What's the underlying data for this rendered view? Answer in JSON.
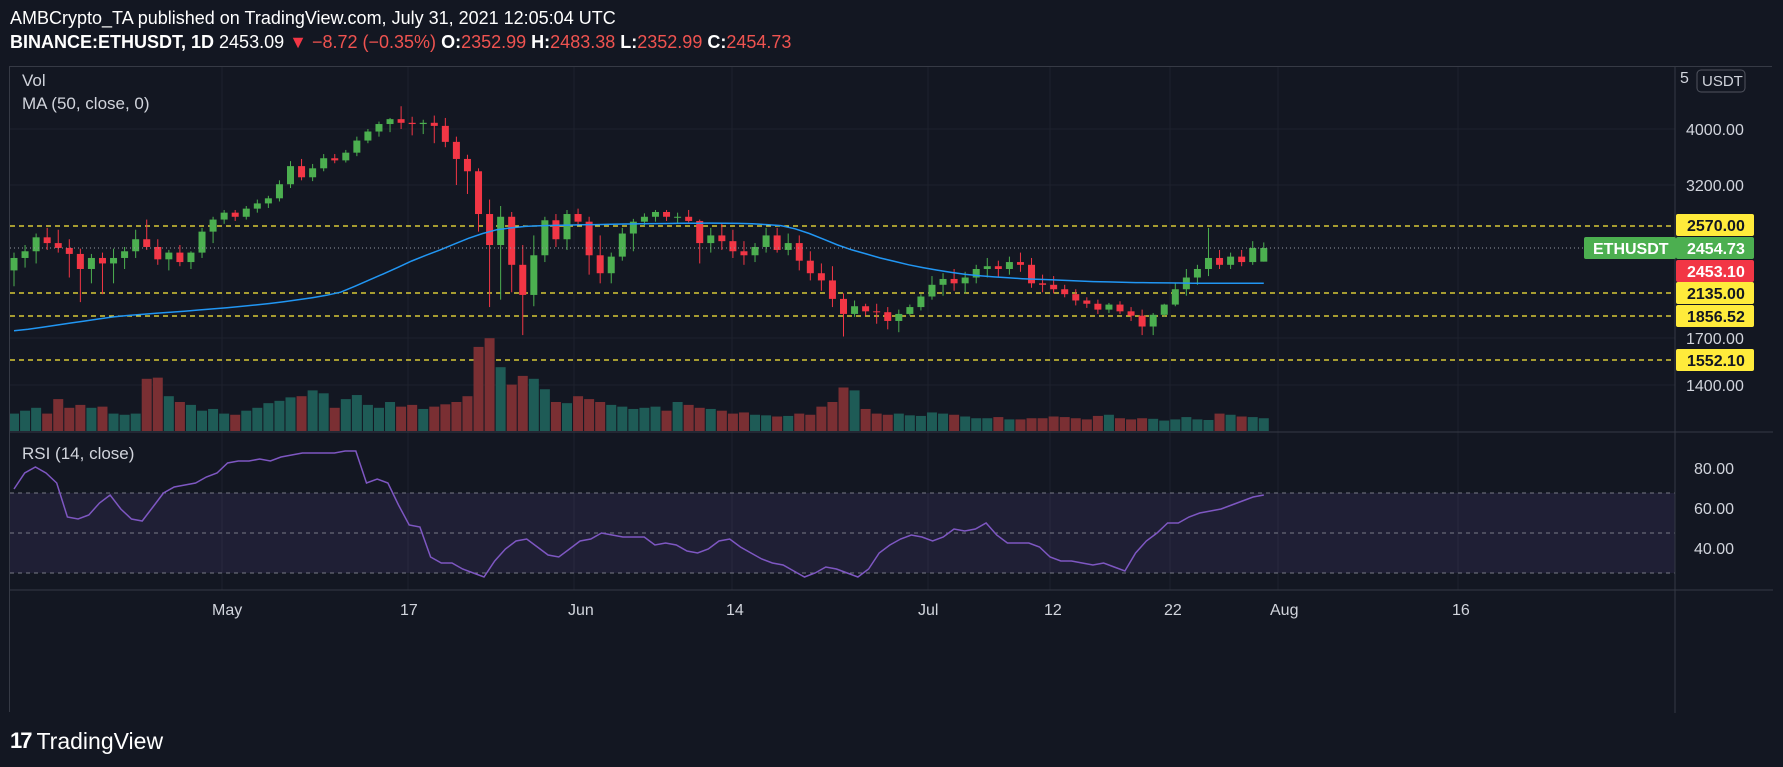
{
  "header": {
    "author": "AMBCrypto_TA",
    "published_text": "published on TradingView.com, July 31, 2021 12:05:04 UTC",
    "symbol": "BINANCE:ETHUSDT, 1D",
    "last": "2453.09",
    "change": "−8.72 (−0.35%)",
    "o_label": "O:",
    "o_val": "2352.99",
    "h_label": "H:",
    "h_val": "2483.38",
    "l_label": "L:",
    "l_val": "2352.99",
    "c_label": "C:",
    "c_val": "2454.73"
  },
  "indicators": {
    "vol": "Vol",
    "ma": "MA (50, close, 0)",
    "rsi": "RSI (14, close)"
  },
  "currency_button": "USDT",
  "price_axis": {
    "ticks": [
      "4000.00",
      "3200.00",
      "1700.00",
      "1400.00"
    ],
    "top_partial": "5"
  },
  "rsi_axis": {
    "ticks": [
      "80.00",
      "60.00",
      "40.00"
    ]
  },
  "time_axis": {
    "ticks": [
      "May",
      "17",
      "Jun",
      "14",
      "Jul",
      "12",
      "22",
      "Aug",
      "16"
    ]
  },
  "price_tags": {
    "symbol_label": "ETHUSDT",
    "symbol_value": "2454.73",
    "last_value": "2453.10",
    "levels": [
      "2570.00",
      "2135.00",
      "1856.52",
      "1552.10"
    ]
  },
  "colors": {
    "background": "#131722",
    "up": "#26a69a",
    "candle_up": "#4caf50",
    "candle_down": "#f23645",
    "vol_up": "#1e5b56",
    "vol_down": "#7a2f33",
    "ma": "#2196f3",
    "rsi": "#7e57c2",
    "level": "#ffeb3b"
  },
  "footer": {
    "brand": "TradingView"
  },
  "chart_data": {
    "type": "candlestick",
    "symbol": "ETHUSDT",
    "timeframe": "1D",
    "price_levels": [
      2570.0,
      2135.0,
      1856.52,
      1552.1
    ],
    "last_price": 2454.73,
    "candles": [
      {
        "o": 2290,
        "h": 2420,
        "l": 2180,
        "c": 2380
      },
      {
        "o": 2380,
        "h": 2470,
        "l": 2310,
        "c": 2430
      },
      {
        "o": 2430,
        "h": 2530,
        "l": 2340,
        "c": 2510
      },
      {
        "o": 2510,
        "h": 2560,
        "l": 2440,
        "c": 2480
      },
      {
        "o": 2480,
        "h": 2550,
        "l": 2420,
        "c": 2455
      },
      {
        "o": 2455,
        "h": 2500,
        "l": 2240,
        "c": 2410
      },
      {
        "o": 2410,
        "h": 2450,
        "l": 2020,
        "c": 2300
      },
      {
        "o": 2300,
        "h": 2410,
        "l": 2200,
        "c": 2380
      },
      {
        "o": 2380,
        "h": 2420,
        "l": 2120,
        "c": 2340
      },
      {
        "o": 2340,
        "h": 2450,
        "l": 2200,
        "c": 2380
      },
      {
        "o": 2380,
        "h": 2460,
        "l": 2300,
        "c": 2430
      },
      {
        "o": 2430,
        "h": 2550,
        "l": 2380,
        "c": 2500
      },
      {
        "o": 2500,
        "h": 2660,
        "l": 2440,
        "c": 2460
      },
      {
        "o": 2460,
        "h": 2500,
        "l": 2330,
        "c": 2370
      },
      {
        "o": 2370,
        "h": 2440,
        "l": 2290,
        "c": 2420
      },
      {
        "o": 2420,
        "h": 2470,
        "l": 2320,
        "c": 2350
      },
      {
        "o": 2350,
        "h": 2430,
        "l": 2300,
        "c": 2420
      },
      {
        "o": 2420,
        "h": 2560,
        "l": 2380,
        "c": 2540
      },
      {
        "o": 2540,
        "h": 2700,
        "l": 2480,
        "c": 2660
      },
      {
        "o": 2660,
        "h": 2800,
        "l": 2600,
        "c": 2760
      },
      {
        "o": 2760,
        "h": 2800,
        "l": 2640,
        "c": 2700
      },
      {
        "o": 2700,
        "h": 2860,
        "l": 2660,
        "c": 2820
      },
      {
        "o": 2820,
        "h": 2960,
        "l": 2760,
        "c": 2900
      },
      {
        "o": 2900,
        "h": 3020,
        "l": 2830,
        "c": 2980
      },
      {
        "o": 2980,
        "h": 3260,
        "l": 2930,
        "c": 3210
      },
      {
        "o": 3210,
        "h": 3520,
        "l": 3150,
        "c": 3450
      },
      {
        "o": 3450,
        "h": 3550,
        "l": 3260,
        "c": 3300
      },
      {
        "o": 3300,
        "h": 3480,
        "l": 3250,
        "c": 3420
      },
      {
        "o": 3420,
        "h": 3620,
        "l": 3380,
        "c": 3560
      },
      {
        "o": 3560,
        "h": 3620,
        "l": 3490,
        "c": 3530
      },
      {
        "o": 3530,
        "h": 3680,
        "l": 3500,
        "c": 3640
      },
      {
        "o": 3640,
        "h": 3880,
        "l": 3590,
        "c": 3820
      },
      {
        "o": 3820,
        "h": 4000,
        "l": 3780,
        "c": 3960
      },
      {
        "o": 3960,
        "h": 4120,
        "l": 3880,
        "c": 4080
      },
      {
        "o": 4080,
        "h": 4180,
        "l": 3950,
        "c": 4160
      },
      {
        "o": 4160,
        "h": 4380,
        "l": 4000,
        "c": 4100
      },
      {
        "o": 4100,
        "h": 4200,
        "l": 3900,
        "c": 4080
      },
      {
        "o": 4080,
        "h": 4150,
        "l": 3920,
        "c": 4100
      },
      {
        "o": 4100,
        "h": 4220,
        "l": 3780,
        "c": 4050
      },
      {
        "o": 4050,
        "h": 4180,
        "l": 3720,
        "c": 3800
      },
      {
        "o": 3800,
        "h": 3880,
        "l": 3200,
        "c": 3550
      },
      {
        "o": 3550,
        "h": 3610,
        "l": 3050,
        "c": 3380
      },
      {
        "o": 3380,
        "h": 3420,
        "l": 2540,
        "c": 2740
      },
      {
        "o": 2740,
        "h": 2960,
        "l": 1960,
        "c": 2470
      },
      {
        "o": 2470,
        "h": 2860,
        "l": 2050,
        "c": 2700
      },
      {
        "o": 2700,
        "h": 2770,
        "l": 2140,
        "c": 2330
      },
      {
        "o": 2330,
        "h": 2470,
        "l": 1720,
        "c": 2110
      },
      {
        "o": 2110,
        "h": 2520,
        "l": 1970,
        "c": 2400
      },
      {
        "o": 2400,
        "h": 2700,
        "l": 2350,
        "c": 2650
      },
      {
        "o": 2650,
        "h": 2740,
        "l": 2460,
        "c": 2500
      },
      {
        "o": 2500,
        "h": 2800,
        "l": 2440,
        "c": 2740
      },
      {
        "o": 2740,
        "h": 2820,
        "l": 2590,
        "c": 2630
      },
      {
        "o": 2630,
        "h": 2700,
        "l": 2260,
        "c": 2400
      },
      {
        "o": 2400,
        "h": 2520,
        "l": 2200,
        "c": 2270
      },
      {
        "o": 2270,
        "h": 2420,
        "l": 2200,
        "c": 2390
      },
      {
        "o": 2390,
        "h": 2560,
        "l": 2360,
        "c": 2530
      },
      {
        "o": 2530,
        "h": 2670,
        "l": 2430,
        "c": 2630
      },
      {
        "o": 2630,
        "h": 2750,
        "l": 2570,
        "c": 2700
      },
      {
        "o": 2700,
        "h": 2800,
        "l": 2630,
        "c": 2770
      },
      {
        "o": 2770,
        "h": 2800,
        "l": 2640,
        "c": 2700
      },
      {
        "o": 2700,
        "h": 2760,
        "l": 2600,
        "c": 2700
      },
      {
        "o": 2700,
        "h": 2800,
        "l": 2620,
        "c": 2640
      },
      {
        "o": 2640,
        "h": 2660,
        "l": 2340,
        "c": 2480
      },
      {
        "o": 2480,
        "h": 2560,
        "l": 2420,
        "c": 2520
      },
      {
        "o": 2520,
        "h": 2600,
        "l": 2440,
        "c": 2490
      },
      {
        "o": 2490,
        "h": 2550,
        "l": 2380,
        "c": 2430
      },
      {
        "o": 2430,
        "h": 2490,
        "l": 2330,
        "c": 2400
      },
      {
        "o": 2400,
        "h": 2480,
        "l": 2350,
        "c": 2460
      },
      {
        "o": 2460,
        "h": 2560,
        "l": 2420,
        "c": 2520
      },
      {
        "o": 2520,
        "h": 2560,
        "l": 2420,
        "c": 2440
      },
      {
        "o": 2440,
        "h": 2530,
        "l": 2400,
        "c": 2480
      },
      {
        "o": 2480,
        "h": 2520,
        "l": 2290,
        "c": 2360
      },
      {
        "o": 2360,
        "h": 2430,
        "l": 2220,
        "c": 2270
      },
      {
        "o": 2270,
        "h": 2340,
        "l": 2150,
        "c": 2220
      },
      {
        "o": 2220,
        "h": 2320,
        "l": 1960,
        "c": 2060
      },
      {
        "o": 2060,
        "h": 2130,
        "l": 1710,
        "c": 1880
      },
      {
        "o": 1880,
        "h": 2040,
        "l": 1850,
        "c": 1970
      },
      {
        "o": 1970,
        "h": 2000,
        "l": 1860,
        "c": 1910
      },
      {
        "o": 1910,
        "h": 2000,
        "l": 1800,
        "c": 1900
      },
      {
        "o": 1900,
        "h": 1960,
        "l": 1760,
        "c": 1820
      },
      {
        "o": 1820,
        "h": 1930,
        "l": 1740,
        "c": 1880
      },
      {
        "o": 1880,
        "h": 1990,
        "l": 1860,
        "c": 1960
      },
      {
        "o": 1960,
        "h": 2120,
        "l": 1920,
        "c": 2090
      },
      {
        "o": 2090,
        "h": 2250,
        "l": 2050,
        "c": 2190
      },
      {
        "o": 2190,
        "h": 2270,
        "l": 2100,
        "c": 2230
      },
      {
        "o": 2230,
        "h": 2300,
        "l": 2150,
        "c": 2200
      },
      {
        "o": 2200,
        "h": 2280,
        "l": 2130,
        "c": 2240
      },
      {
        "o": 2240,
        "h": 2330,
        "l": 2200,
        "c": 2300
      },
      {
        "o": 2300,
        "h": 2380,
        "l": 2240,
        "c": 2320
      },
      {
        "o": 2320,
        "h": 2360,
        "l": 2240,
        "c": 2300
      },
      {
        "o": 2300,
        "h": 2390,
        "l": 2260,
        "c": 2350
      },
      {
        "o": 2350,
        "h": 2420,
        "l": 2280,
        "c": 2330
      },
      {
        "o": 2330,
        "h": 2380,
        "l": 2170,
        "c": 2200
      },
      {
        "o": 2200,
        "h": 2260,
        "l": 2140,
        "c": 2190
      },
      {
        "o": 2190,
        "h": 2250,
        "l": 2130,
        "c": 2160
      },
      {
        "o": 2160,
        "h": 2190,
        "l": 2080,
        "c": 2120
      },
      {
        "o": 2120,
        "h": 2160,
        "l": 1980,
        "c": 2040
      },
      {
        "o": 2040,
        "h": 2080,
        "l": 1950,
        "c": 2000
      },
      {
        "o": 2000,
        "h": 2050,
        "l": 1880,
        "c": 1930
      },
      {
        "o": 1930,
        "h": 2010,
        "l": 1890,
        "c": 1990
      },
      {
        "o": 1990,
        "h": 2030,
        "l": 1880,
        "c": 1910
      },
      {
        "o": 1910,
        "h": 1960,
        "l": 1820,
        "c": 1860
      },
      {
        "o": 1860,
        "h": 1930,
        "l": 1720,
        "c": 1780
      },
      {
        "o": 1780,
        "h": 1890,
        "l": 1720,
        "c": 1870
      },
      {
        "o": 1870,
        "h": 2000,
        "l": 1850,
        "c": 1990
      },
      {
        "o": 1990,
        "h": 2200,
        "l": 1970,
        "c": 2160
      },
      {
        "o": 2160,
        "h": 2300,
        "l": 2100,
        "c": 2240
      },
      {
        "o": 2240,
        "h": 2330,
        "l": 2190,
        "c": 2300
      },
      {
        "o": 2300,
        "h": 2560,
        "l": 2250,
        "c": 2380
      },
      {
        "o": 2380,
        "h": 2440,
        "l": 2300,
        "c": 2330
      },
      {
        "o": 2330,
        "h": 2420,
        "l": 2300,
        "c": 2390
      },
      {
        "o": 2390,
        "h": 2440,
        "l": 2320,
        "c": 2350
      },
      {
        "o": 2350,
        "h": 2490,
        "l": 2330,
        "c": 2455
      },
      {
        "o": 2352.99,
        "h": 2483.38,
        "l": 2352.99,
        "c": 2454.73
      }
    ],
    "volume_relative": [
      0.3,
      0.35,
      0.4,
      0.3,
      0.55,
      0.4,
      0.45,
      0.4,
      0.42,
      0.3,
      0.28,
      0.3,
      0.9,
      0.92,
      0.6,
      0.5,
      0.45,
      0.35,
      0.38,
      0.3,
      0.28,
      0.35,
      0.4,
      0.48,
      0.52,
      0.58,
      0.6,
      0.7,
      0.65,
      0.4,
      0.55,
      0.62,
      0.45,
      0.4,
      0.5,
      0.42,
      0.45,
      0.38,
      0.42,
      0.46,
      0.5,
      0.6,
      1.45,
      1.6,
      1.1,
      0.8,
      0.95,
      0.9,
      0.72,
      0.5,
      0.48,
      0.6,
      0.55,
      0.5,
      0.45,
      0.42,
      0.38,
      0.4,
      0.42,
      0.35,
      0.5,
      0.45,
      0.4,
      0.38,
      0.35,
      0.3,
      0.32,
      0.28,
      0.27,
      0.25,
      0.26,
      0.3,
      0.28,
      0.42,
      0.5,
      0.75,
      0.7,
      0.38,
      0.3,
      0.28,
      0.3,
      0.27,
      0.26,
      0.32,
      0.3,
      0.28,
      0.25,
      0.22,
      0.22,
      0.24,
      0.2,
      0.2,
      0.22,
      0.22,
      0.25,
      0.24,
      0.22,
      0.2,
      0.26,
      0.28,
      0.22,
      0.2,
      0.22,
      0.21,
      0.18,
      0.2,
      0.24,
      0.2,
      0.19,
      0.3,
      0.28,
      0.25,
      0.24,
      0.22,
      0.26,
      0.24,
      0.2,
      0.18,
      0.2,
      0.12
    ],
    "ma50": [
      1750,
      1760,
      1775,
      1790,
      1805,
      1820,
      1835,
      1850,
      1862,
      1875,
      1888,
      1900,
      1912,
      1925,
      1938,
      1952,
      1968,
      1985,
      2003,
      2024,
      2048,
      2075,
      2105,
      2140,
      2180,
      2222,
      2265,
      2310,
      2358,
      2400,
      2440,
      2475,
      2505,
      2530,
      2550,
      2560,
      2568,
      2574,
      2578,
      2582,
      2586,
      2590,
      2594,
      2598,
      2600,
      2603,
      2605,
      2607,
      2609,
      2610,
      2609,
      2606,
      2600,
      2590,
      2575,
      2555,
      2530,
      2500,
      2470,
      2440,
      2410,
      2380,
      2355,
      2330,
      2310,
      2292,
      2276,
      2262,
      2252,
      2244,
      2238,
      2232,
      2228,
      2224,
      2220,
      2216,
      2212,
      2210,
      2207,
      2205,
      2204,
      2203,
      2202,
      2201,
      2200,
      2200,
      2200,
      2200,
      2200
    ],
    "ma50_start_index": 0,
    "rsi": [
      72,
      80,
      83,
      80,
      75,
      58,
      57,
      59,
      65,
      69,
      62,
      57,
      56,
      63,
      70,
      73,
      74,
      75,
      78,
      80,
      85,
      86,
      86,
      87,
      86,
      88,
      89,
      90,
      90,
      90,
      90,
      91,
      91,
      75,
      77,
      75,
      64,
      54,
      53,
      38,
      35,
      35,
      32,
      30,
      28,
      36,
      42,
      46,
      47,
      43,
      39,
      38,
      42,
      46,
      47,
      50,
      49,
      48,
      48,
      48,
      44,
      45,
      44,
      41,
      40,
      42,
      46,
      47,
      43,
      40,
      37,
      35,
      34,
      31,
      28,
      30,
      33,
      32,
      30,
      28,
      32,
      40,
      44,
      47,
      49,
      48,
      46,
      48,
      52,
      51,
      52,
      55,
      49,
      45,
      45,
      45,
      43,
      38,
      36,
      36,
      35,
      34,
      35,
      33,
      31,
      40,
      46,
      50,
      55,
      55,
      58,
      60,
      61,
      62,
      64,
      66,
      68,
      69
    ],
    "rsi_levels": [
      70,
      50,
      30
    ],
    "x_labels": [
      "May",
      "17",
      "Jun",
      "14",
      "Jul",
      "12",
      "22",
      "Aug",
      "16"
    ],
    "price_axis_ticks": [
      4000,
      3200,
      1700,
      1400
    ]
  }
}
